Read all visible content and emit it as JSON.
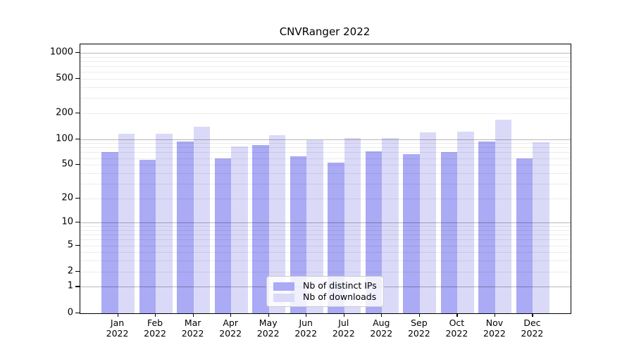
{
  "chart_data": {
    "type": "bar",
    "title": "CNVRanger 2022",
    "categories": [
      "Jan 2022",
      "Feb 2022",
      "Mar 2022",
      "Apr 2022",
      "May 2022",
      "Jun 2022",
      "Jul 2022",
      "Aug 2022",
      "Sep 2022",
      "Oct 2022",
      "Nov 2022",
      "Dec 2022"
    ],
    "series": [
      {
        "name": "Nb of distinct IPs",
        "color": "#aaaaf5",
        "values": [
          70,
          57,
          94,
          59,
          86,
          63,
          53,
          72,
          67,
          70,
          94,
          60
        ]
      },
      {
        "name": "Nb of downloads",
        "color": "#dadaf8",
        "values": [
          115,
          115,
          139,
          82,
          112,
          97,
          103,
          103,
          119,
          123,
          168,
          92
        ]
      }
    ],
    "xlabel": "",
    "ylabel": "",
    "yscale": "log1p",
    "ylim": [
      0,
      1250
    ],
    "yticks": [
      1000,
      500,
      200,
      100,
      50,
      20,
      10,
      5,
      2,
      1,
      0
    ],
    "grid": "horizontal major (decades dark) + minor (light)",
    "legend_position": "lower center"
  },
  "colors": {
    "distinct_ips_bar": "#aaaaf5",
    "downloads_bar": "#dadaf8",
    "major_gridline": "#b9b9b9",
    "minor_gridline": "#ececec",
    "legend_border": "#cccccc"
  }
}
